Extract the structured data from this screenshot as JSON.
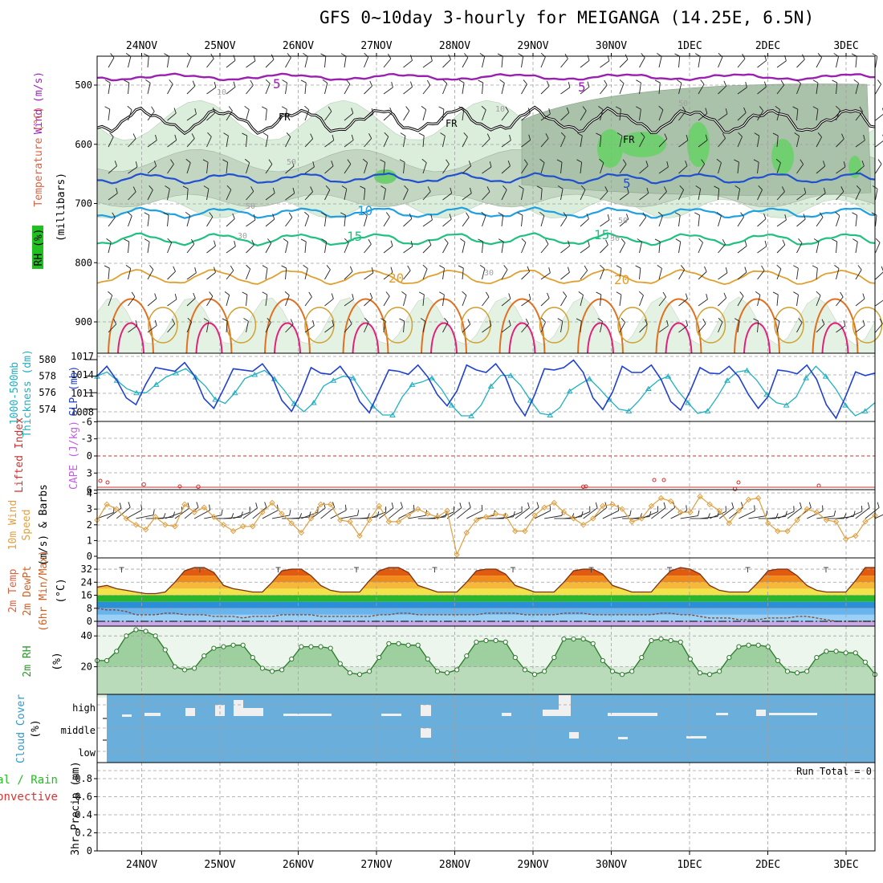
{
  "title": "GFS 0~10day 3-hourly for MEIGANGA (14.25E, 6.5N)",
  "colors": {
    "temperature": "#e06040",
    "wind": "#a020c0",
    "rh": "#20c020",
    "thickness": "#20b0c0",
    "slp": "#2040d0",
    "lifted_index": "#d03030",
    "cape": "#c060e0",
    "wind10m": "#e0a040",
    "cloud": "#6aaedb",
    "precip_total": "#20c020",
    "precip_conv": "#e03030",
    "dewpt": "#d06020"
  },
  "chart_data": {
    "type": "meteogram",
    "dates": [
      "24NOV",
      "25NOV",
      "26NOV",
      "27NOV",
      "28NOV",
      "29NOV",
      "30NOV",
      "1DEC",
      "2DEC",
      "3DEC"
    ],
    "panels": [
      {
        "id": "upper_air",
        "ylabels": [
          "Wind (m/s)",
          "Temperature (°C)",
          "RH (%)",
          "(millibars)"
        ],
        "yticks": [
          500,
          600,
          700,
          800,
          900
        ],
        "contour_labels": [
          "5",
          "5",
          "FR",
          "FR",
          "FR",
          "5",
          "10",
          "15",
          "15",
          "20",
          "20",
          "10",
          "10",
          "30",
          "30",
          "30",
          "50",
          "50",
          "50",
          "50"
        ],
        "isotherms_c": [
          5,
          0,
          5,
          10,
          15,
          20
        ]
      },
      {
        "id": "thickness_slp",
        "ylabels": [
          "1000-500mb",
          "Thickness (dm)",
          "SLP (mb)"
        ],
        "thickness_ticks": [
          574,
          576,
          578,
          580
        ],
        "slp_ticks": [
          1008,
          1011,
          1014,
          1017
        ],
        "slp_mb": [
          1013.8,
          1015.4,
          1013.2,
          1010.3,
          1009.2,
          1012.5,
          1015.2,
          1014.9,
          1014.6,
          1016.0,
          1013.9,
          1010.2,
          1008.6,
          1011.7,
          1015.0,
          1014.8,
          1014.6,
          1015.8,
          1013.7,
          1009.9,
          1008.1,
          1011.2,
          1015.2,
          1014.3,
          1014.1,
          1015.4,
          1013.3,
          1009.7,
          1007.9,
          1011.4,
          1014.8,
          1014.6,
          1014.1,
          1015.6,
          1013.7,
          1010.8,
          1009.0,
          1011.4,
          1015.6,
          1014.8,
          1014.4,
          1015.8,
          1013.7,
          1009.7,
          1007.4,
          1010.8,
          1015.0,
          1014.8,
          1015.2,
          1016.4,
          1014.4,
          1010.3,
          1008.4,
          1011.2,
          1015.4,
          1014.4,
          1014.4,
          1015.6,
          1013.3,
          1009.7,
          1008.3,
          1011.4,
          1015.2,
          1014.3,
          1014.2,
          1015.4,
          1013.7,
          1010.8,
          1008.6,
          1010.5,
          1014.8,
          1014.6,
          1014.2,
          1015.6,
          1013.3,
          1009.2,
          1007.0,
          1010.6,
          1014.5,
          1013.9,
          1014.3
        ],
        "thickness_dm": [
          578.0,
          578.5,
          577.5,
          576.5,
          576.0,
          576.0,
          577.0,
          577.9,
          578.4,
          578.9,
          577.9,
          576.8,
          575.2,
          574.7,
          576.0,
          577.7,
          578.2,
          578.7,
          577.7,
          576.3,
          574.7,
          573.7,
          574.8,
          576.8,
          577.5,
          578.0,
          577.8,
          576.0,
          574.4,
          573.3,
          573.3,
          575.5,
          577.0,
          577.3,
          577.8,
          576.4,
          574.5,
          573.2,
          573.2,
          574.5,
          576.8,
          578.1,
          578.1,
          576.9,
          575.1,
          573.5,
          573.3,
          574.2,
          576.2,
          577.0,
          577.7,
          576.5,
          575.2,
          574.0,
          573.8,
          575.0,
          576.5,
          577.5,
          578.0,
          576.2,
          574.8,
          573.5,
          573.8,
          575.5,
          577.5,
          578.5,
          578.7,
          577.5,
          575.8,
          574.8,
          574.5,
          575.5,
          577.8,
          579.2,
          578.0,
          576.5,
          574.5,
          573.2,
          573.8,
          574.8
        ]
      },
      {
        "id": "lifted_cape",
        "ylabels": [
          "Lifted Index",
          "CAPE (J/kg)"
        ],
        "yticks": [
          -6,
          -3,
          0,
          3,
          6
        ],
        "lifted_index_markers": [
          [
            0.06,
            5
          ],
          [
            0.13,
            5.4
          ],
          [
            0.625,
            5.4
          ],
          [
            0.82,
            5.8
          ]
        ]
      },
      {
        "id": "wind10m",
        "ylabels": [
          "10m Wind",
          "Speed",
          "(m/s) & Barbs"
        ],
        "yticks": [
          0,
          1,
          2,
          3,
          4
        ],
        "speed_ms": [
          2.3,
          3.3,
          3.0,
          2.4,
          2.0,
          1.7,
          2.5,
          2.0,
          1.9,
          3.3,
          2.8,
          3.1,
          2.5,
          2.0,
          1.6,
          1.9,
          1.9,
          2.8,
          3.4,
          2.7,
          2.1,
          1.5,
          2.4,
          3.3,
          3.3,
          2.3,
          2.2,
          1.3,
          2.3,
          3.2,
          2.2,
          2.2,
          2.6,
          3.0,
          2.7,
          2.5,
          2.9,
          0.1,
          1.5,
          2.3,
          2.5,
          2.7,
          2.6,
          1.6,
          1.6,
          2.6,
          3.1,
          3.4,
          2.8,
          2.4,
          2.0,
          2.4,
          3.2,
          3.3,
          3.0,
          2.2,
          2.4,
          3.2,
          3.7,
          3.5,
          2.8,
          2.8,
          3.8,
          3.3,
          2.9,
          2.1,
          2.9,
          3.6,
          3.7,
          2.1,
          1.6,
          1.6,
          2.3,
          3.0,
          2.8,
          2.3,
          2.2,
          1.1,
          1.3,
          2.2,
          2.6
        ]
      },
      {
        "id": "temp_dewpt",
        "ylabels": [
          "2m Temp",
          "2m DewPt",
          "(6hr Min/Max)",
          "(°C)"
        ],
        "yticks": [
          0,
          8,
          16,
          24,
          32
        ],
        "temp_c": [
          21,
          22,
          20,
          19,
          18,
          17,
          17,
          18,
          24,
          31,
          33,
          33,
          30,
          22,
          20,
          19,
          18,
          18,
          24,
          31,
          32,
          32,
          28,
          22,
          19,
          18,
          18,
          18,
          25,
          31,
          33,
          33,
          30,
          22,
          20,
          18,
          18,
          18,
          24,
          31,
          32,
          32,
          29,
          22,
          20,
          18,
          18,
          18,
          24,
          31,
          32,
          32,
          29,
          22,
          20,
          18,
          18,
          18,
          25,
          31,
          33,
          32,
          29,
          22,
          19,
          18,
          18,
          18,
          24,
          31,
          32,
          32,
          28,
          22,
          19,
          18,
          18,
          18,
          25,
          33,
          33
        ],
        "dewpt_c": [
          8,
          7,
          7,
          6,
          4,
          4,
          4,
          5,
          5,
          4,
          4,
          4,
          3,
          3,
          3,
          2,
          3,
          3,
          3,
          4,
          4,
          4,
          4,
          3,
          3,
          3,
          3,
          3,
          3,
          4,
          4,
          5,
          5,
          4,
          4,
          4,
          4,
          4,
          4,
          4,
          5,
          5,
          5,
          5,
          4,
          4,
          4,
          4,
          5,
          5,
          5,
          4,
          4,
          4,
          4,
          4,
          4,
          4,
          5,
          5,
          4,
          4,
          3,
          2,
          2,
          2,
          1,
          1,
          1,
          2,
          2,
          2,
          3,
          3,
          2,
          1,
          0,
          0,
          0,
          0,
          0
        ]
      },
      {
        "id": "rh2m",
        "ylabels": [
          "2m RH",
          "(%)"
        ],
        "yticks": [
          20,
          40
        ],
        "rh_percent": [
          24,
          24,
          30,
          40,
          44,
          43,
          40,
          31,
          20,
          18,
          19,
          27,
          32,
          33,
          34,
          34,
          26,
          19,
          17,
          18,
          25,
          33,
          33,
          33,
          32,
          22,
          16,
          15,
          17,
          26,
          35,
          35,
          34,
          34,
          25,
          17,
          16,
          18,
          27,
          36,
          37,
          37,
          36,
          26,
          18,
          15,
          17,
          26,
          38,
          38,
          38,
          35,
          24,
          17,
          15,
          17,
          26,
          37,
          38,
          37,
          36,
          25,
          16,
          15,
          17,
          26,
          33,
          34,
          34,
          33,
          24,
          17,
          16,
          17,
          26,
          30,
          30,
          29,
          29,
          23,
          15
        ]
      },
      {
        "id": "cloud",
        "ylabels": [
          "Cloud Cover",
          "(%)"
        ],
        "levels": [
          "high",
          "middle",
          "low"
        ]
      },
      {
        "id": "precip",
        "ylabels": [
          "Total / Rain",
          "Convective",
          "3hr Precip (mm)"
        ],
        "yticks": [
          0,
          0.2,
          0.4,
          0.6,
          0.8
        ],
        "annotation": "Run Total = 0"
      }
    ]
  }
}
